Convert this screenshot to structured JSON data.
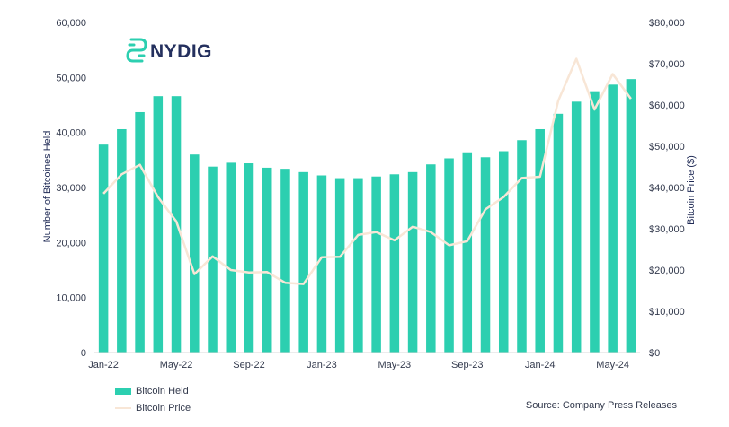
{
  "logo": {
    "text": "NYDIG"
  },
  "source": "Source: Company Press Releases",
  "colors": {
    "bars": "#2ccfb0",
    "line": "#f8e6d6",
    "logo_icon": "#2ccfb0",
    "logo_text": "#24305e"
  },
  "chart_data": {
    "type": "bar+line",
    "categories": [
      "Jan-22",
      "Feb-22",
      "Mar-22",
      "Apr-22",
      "May-22",
      "Jun-22",
      "Jul-22",
      "Aug-22",
      "Sep-22",
      "Oct-22",
      "Nov-22",
      "Dec-22",
      "Jan-23",
      "Feb-23",
      "Mar-23",
      "Apr-23",
      "May-23",
      "Jun-23",
      "Jul-23",
      "Aug-23",
      "Sep-23",
      "Oct-23",
      "Nov-23",
      "Dec-23",
      "Jan-24",
      "Feb-24",
      "Mar-24",
      "Apr-24",
      "May-24",
      "Jun-24"
    ],
    "x_tick_labels": [
      "Jan-22",
      "May-22",
      "Sep-22",
      "Jan-23",
      "May-23",
      "Sep-23",
      "Jan-24",
      "May-24"
    ],
    "series": [
      {
        "name": "Bitcoin Held",
        "type": "bar",
        "axis": "left",
        "values": [
          37800,
          40600,
          43700,
          46600,
          46600,
          36000,
          33800,
          34500,
          34400,
          33600,
          33400,
          32800,
          32200,
          31700,
          31700,
          32000,
          32400,
          32800,
          34200,
          35300,
          36400,
          35500,
          36600,
          38600,
          40600,
          43400,
          45600,
          47500,
          48700,
          49700
        ]
      },
      {
        "name": "Bitcoin Price",
        "type": "line",
        "axis": "right",
        "values": [
          38500,
          43200,
          45500,
          37700,
          31800,
          19000,
          23300,
          20000,
          19400,
          19500,
          16900,
          16600,
          23100,
          23200,
          28500,
          29200,
          27200,
          30500,
          29200,
          26000,
          27000,
          34700,
          37700,
          42300,
          42600,
          61000,
          71200,
          58900,
          67500,
          61500
        ]
      }
    ],
    "y_left": {
      "label": "Number of Bitcoines Held",
      "min": 0,
      "max": 60000,
      "ticks": [
        "0",
        "10,000",
        "20,000",
        "30,000",
        "40,000",
        "50,000",
        "60,000"
      ]
    },
    "y_right": {
      "label": "Bitcoin Price ($)",
      "min": 0,
      "max": 80000,
      "ticks": [
        "$0",
        "$10,000",
        "$20,000",
        "$30,000",
        "$40,000",
        "$50,000",
        "$60,000",
        "$70,000",
        "$80,000"
      ]
    },
    "legend": [
      "Bitcoin Held",
      "Bitcoin Price"
    ],
    "legend_position": "bottom-left"
  }
}
